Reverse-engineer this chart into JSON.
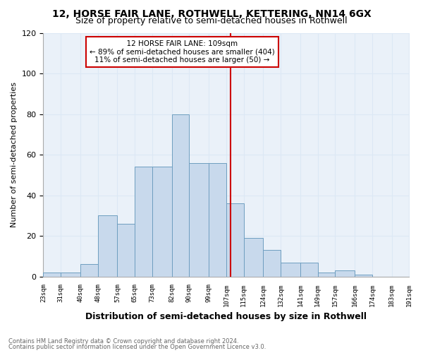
{
  "title": "12, HORSE FAIR LANE, ROTHWELL, KETTERING, NN14 6GX",
  "subtitle": "Size of property relative to semi-detached houses in Rothwell",
  "xlabel": "Distribution of semi-detached houses by size in Rothwell",
  "ylabel": "Number of semi-detached properties",
  "footnote1": "Contains HM Land Registry data © Crown copyright and database right 2024.",
  "footnote2": "Contains public sector information licensed under the Open Government Licence v3.0.",
  "annotation_title": "12 HORSE FAIR LANE: 109sqm",
  "annotation_line1": "← 89% of semi-detached houses are smaller (404)",
  "annotation_line2": "11% of semi-detached houses are larger (50) →",
  "marker_value": 109,
  "bar_edges": [
    23,
    31,
    40,
    48,
    57,
    65,
    73,
    82,
    90,
    99,
    107,
    115,
    124,
    132,
    141,
    149,
    157,
    166,
    174,
    183,
    191
  ],
  "bar_heights": [
    2,
    2,
    6,
    30,
    26,
    54,
    54,
    80,
    56,
    56,
    36,
    19,
    13,
    7,
    7,
    2,
    3,
    1,
    0,
    0
  ],
  "bar_color": "#c8d9ec",
  "bar_edge_color": "#6e9ec0",
  "marker_color": "#cc0000",
  "grid_color": "#dce8f5",
  "bg_color": "#eaf1f9",
  "ylim": [
    0,
    120
  ],
  "yticks": [
    0,
    20,
    40,
    60,
    80,
    100,
    120
  ],
  "annotation_box_edge": "#cc0000",
  "title_fontsize": 10,
  "subtitle_fontsize": 9
}
